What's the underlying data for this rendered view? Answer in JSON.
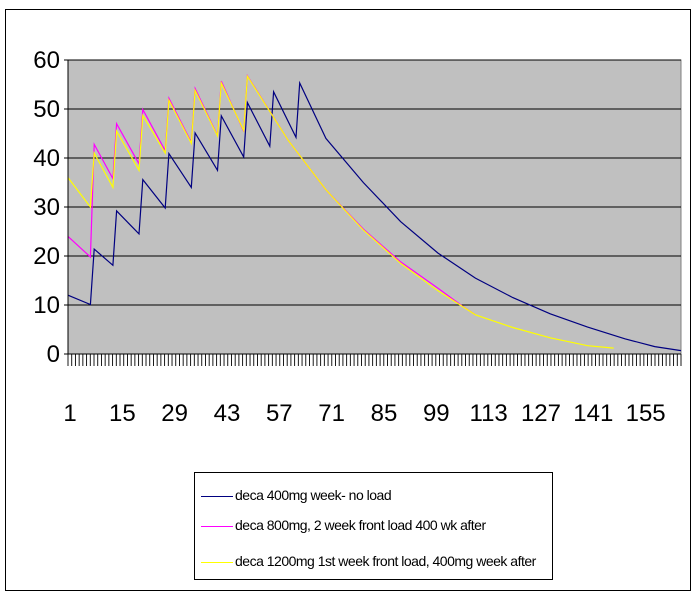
{
  "chart_data": {
    "type": "line",
    "title": "",
    "xlabel": "",
    "ylabel": "",
    "ylim": [
      0,
      60
    ],
    "yticks": [
      0,
      10,
      20,
      30,
      40,
      50,
      60
    ],
    "xlim": [
      1,
      165
    ],
    "xtick_labels": [
      1,
      15,
      29,
      43,
      57,
      71,
      85,
      99,
      113,
      127,
      141,
      155
    ],
    "plot_background": "#c0c0c0",
    "grid": "horizontal",
    "legend_position": "bottom",
    "series": [
      {
        "name": "deca 400mg week- no load",
        "color": "#000080",
        "points": [
          [
            1,
            12
          ],
          [
            7,
            10.1
          ],
          [
            8,
            21.4
          ],
          [
            13,
            18.1
          ],
          [
            14,
            29.2
          ],
          [
            20,
            24.5
          ],
          [
            21,
            35.6
          ],
          [
            27,
            29.8
          ],
          [
            28,
            40.9
          ],
          [
            34,
            34
          ],
          [
            35,
            45.1
          ],
          [
            41,
            37.5
          ],
          [
            42,
            48.6
          ],
          [
            48,
            40.2
          ],
          [
            49,
            51.3
          ],
          [
            55,
            42.4
          ],
          [
            56,
            53.5
          ],
          [
            62,
            44.2
          ],
          [
            63,
            55.3
          ],
          [
            70,
            44
          ],
          [
            80,
            35
          ],
          [
            90,
            27
          ],
          [
            100,
            20.6
          ],
          [
            110,
            15.5
          ],
          [
            120,
            11.5
          ],
          [
            130,
            8.2
          ],
          [
            140,
            5.5
          ],
          [
            150,
            3.1
          ],
          [
            158,
            1.5
          ],
          [
            165,
            0.7
          ]
        ]
      },
      {
        "name": "deca 800mg, 2 week front load 400 wk after",
        "color": "#ff00ff",
        "points": [
          [
            1,
            24
          ],
          [
            7,
            19.8
          ],
          [
            8,
            42.8
          ],
          [
            13,
            35.8
          ],
          [
            14,
            47
          ],
          [
            20,
            38.8
          ],
          [
            21,
            49.9
          ],
          [
            27,
            41.5
          ],
          [
            28,
            52.2
          ],
          [
            34,
            43.2
          ],
          [
            35,
            54.2
          ],
          [
            41,
            44.6
          ],
          [
            42,
            55.7
          ],
          [
            48,
            45.4
          ],
          [
            49,
            56.8
          ],
          [
            60,
            43.5
          ],
          [
            70,
            33.5
          ],
          [
            80,
            25.5
          ],
          [
            90,
            18.8
          ],
          [
            100,
            13.4
          ],
          [
            107,
            9.5
          ],
          [
            110,
            8
          ]
        ]
      },
      {
        "name": "deca 1200mg 1st week front load, 400mg week after",
        "color": "#ffff00",
        "points": [
          [
            1,
            36
          ],
          [
            7,
            30
          ],
          [
            8,
            41
          ],
          [
            13,
            34
          ],
          [
            14,
            45.5
          ],
          [
            20,
            37.5
          ],
          [
            21,
            48.7
          ],
          [
            27,
            41
          ],
          [
            28,
            51.8
          ],
          [
            34,
            43
          ],
          [
            35,
            53.8
          ],
          [
            41,
            44.5
          ],
          [
            42,
            55.3
          ],
          [
            48,
            45.6
          ],
          [
            49,
            56.7
          ],
          [
            60,
            43.5
          ],
          [
            70,
            33.5
          ],
          [
            80,
            25.3
          ],
          [
            90,
            18.5
          ],
          [
            100,
            12.9
          ],
          [
            110,
            8
          ],
          [
            120,
            5.4
          ],
          [
            130,
            3.3
          ],
          [
            140,
            1.7
          ],
          [
            147,
            1.2
          ]
        ]
      }
    ]
  }
}
